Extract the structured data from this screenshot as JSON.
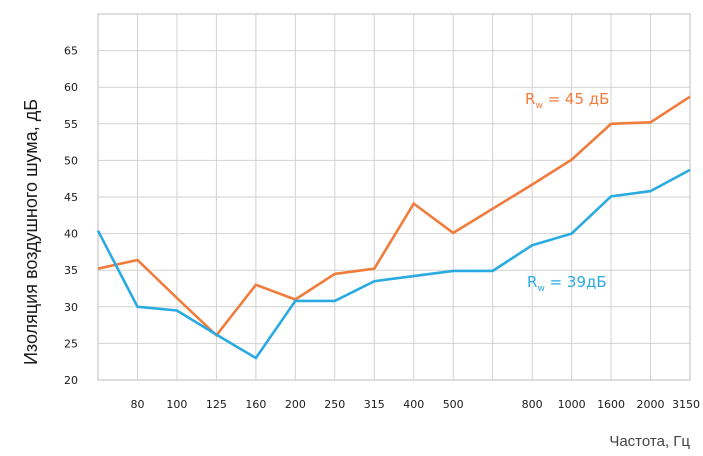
{
  "chart_data": {
    "type": "line",
    "title": "",
    "ylabel": "Изоляция воздушного шума, дБ",
    "xlabel": "Частота, Гц",
    "categories": [
      "",
      "80",
      "100",
      "125",
      "160",
      "200",
      "250",
      "315",
      "400",
      "500",
      "",
      "800",
      "1000",
      "1600",
      "2000",
      "3150"
    ],
    "ylim": [
      20,
      70
    ],
    "yticks": [
      20,
      25,
      30,
      35,
      40,
      45,
      50,
      55,
      60,
      65
    ],
    "grid": true,
    "series": [
      {
        "name": "",
        "color": "#f07c3c",
        "values": [
          35.2,
          36.4,
          31.2,
          26.1,
          33.0,
          31.0,
          34.5,
          35.2,
          44.1,
          40.1,
          null,
          46.7,
          50.1,
          55.0,
          55.2,
          58.7
        ]
      },
      {
        "name": "",
        "color": "#29abe2",
        "values": [
          40.4,
          30.0,
          29.5,
          26.2,
          23.0,
          30.8,
          30.8,
          33.5,
          34.2,
          34.9,
          34.9,
          38.4,
          40.0,
          45.1,
          45.8,
          48.7
        ]
      }
    ],
    "annotations": [
      {
        "main": "R",
        "sub": "w",
        "rest": " = 45 дБ",
        "color": "#f07c3c"
      },
      {
        "main": "R",
        "sub": "w",
        "rest": " = 39дБ",
        "color": "#29abe2"
      }
    ]
  }
}
